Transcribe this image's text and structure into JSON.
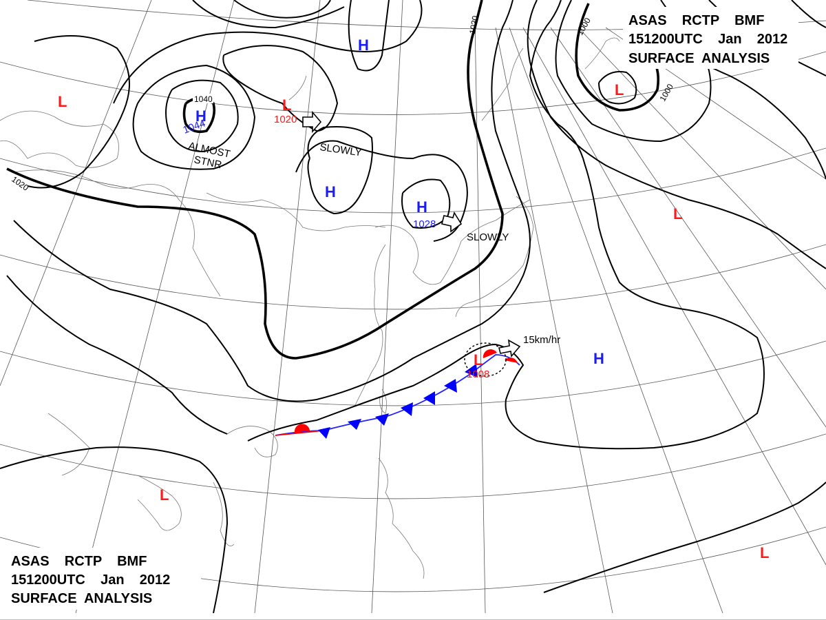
{
  "header_top": {
    "line1": "ASAS    RCTP    BMF",
    "line2": "151200UTC    Jan    2012",
    "line3": "SURFACE  ANALYSIS"
  },
  "header_bottom": {
    "line1": "ASAS    RCTP    BMF",
    "line2": "151200UTC    Jan    2012",
    "line3": "SURFACE  ANALYSIS"
  },
  "colors": {
    "high": "#1a1aff",
    "low": "#ff1a1a",
    "warm_front": "#ff0000",
    "cold_front": "#0000ff",
    "isobar": "#000000",
    "grid": "#555555",
    "coast": "#777777"
  },
  "pressure_centers": [
    {
      "type": "H",
      "value": "1044",
      "name": "high-siberia"
    },
    {
      "type": "H",
      "value": "",
      "name": "high-north"
    },
    {
      "type": "H",
      "value": "",
      "name": "high-mongolia"
    },
    {
      "type": "H",
      "value": "1028",
      "name": "high-manchuria"
    },
    {
      "type": "H",
      "value": "",
      "name": "high-pacific"
    },
    {
      "type": "L",
      "value": "1020",
      "name": "low-north-central"
    },
    {
      "type": "L",
      "value": "",
      "name": "low-west"
    },
    {
      "type": "L",
      "value": "",
      "name": "low-kamchatka"
    },
    {
      "type": "L",
      "value": "",
      "name": "low-northwest-pacific"
    },
    {
      "type": "L",
      "value": "1008",
      "name": "low-east-china-sea"
    },
    {
      "type": "L",
      "value": "",
      "name": "low-indochina"
    },
    {
      "type": "L",
      "value": "",
      "name": "low-southeast"
    }
  ],
  "annotations": {
    "almost": "ALMOST",
    "stnr": "STNR",
    "slowly_1": "SLOWLY",
    "slowly_2": "SLOWLY",
    "speed": "15km/hr"
  },
  "isobar_labels": {
    "iso_1040": "1040",
    "iso_1020_west": "1020",
    "iso_1020_north": "1020",
    "iso_1000_north": "1000",
    "iso_1000_east": "1000"
  }
}
